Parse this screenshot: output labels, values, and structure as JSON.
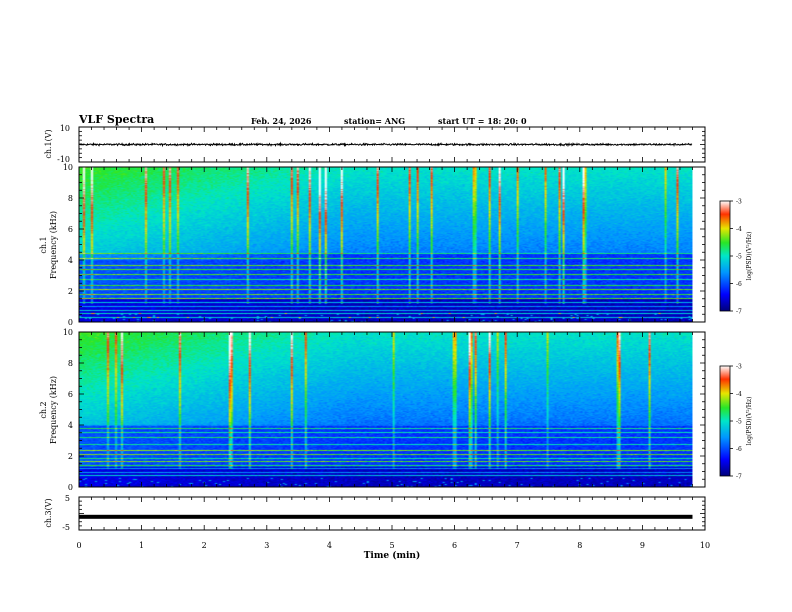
{
  "header": {
    "title": "VLF Spectra",
    "date": "Feb. 24, 2026",
    "station": "station= ANG",
    "start_ut": "start  UT  =   18: 20: 0"
  },
  "chart_data": [
    {
      "type": "line",
      "panel": "ch1-waveform",
      "title": "",
      "ylabel": "ch.1(V)",
      "xlabel": "",
      "xlim": [
        0,
        10
      ],
      "ylim": [
        -10,
        10
      ],
      "yticks": [
        10,
        -10
      ],
      "series": [
        {
          "name": "ch.1",
          "description": "noisy trace near 0 V, active 0 to 9.8 min",
          "x_range": [
            0,
            9.8
          ],
          "mean": 0,
          "amplitude": 1
        }
      ]
    },
    {
      "type": "heatmap",
      "panel": "ch1-spectrogram",
      "ylabel_line1": "ch.1",
      "ylabel_line2": "Frequency (kHz)",
      "xlim": [
        0,
        10
      ],
      "ylim": [
        0,
        10
      ],
      "yticks": [
        0,
        2,
        4,
        6,
        8,
        10
      ],
      "data_x_range": [
        0,
        9.8
      ],
      "colorbar": {
        "label": "log(PSD)(V²/Hz)",
        "min": -7,
        "max": -3,
        "ticks": [
          -3,
          -4,
          -5,
          -6,
          -7
        ]
      }
    },
    {
      "type": "heatmap",
      "panel": "ch2-spectrogram",
      "ylabel_line1": "ch.2",
      "ylabel_line2": "Frequency (kHz)",
      "xlim": [
        0,
        10
      ],
      "ylim": [
        0,
        10
      ],
      "yticks": [
        0,
        2,
        4,
        6,
        8,
        10
      ],
      "data_x_range": [
        0,
        9.8
      ],
      "colorbar": {
        "label": "log(PSD)(V²/Hz)",
        "min": -7,
        "max": -3,
        "ticks": [
          -3,
          -4,
          -5,
          -6,
          -7
        ]
      }
    },
    {
      "type": "line",
      "panel": "ch3-waveform",
      "ylabel": "ch.3(V)",
      "xlabel": "Time  (min)",
      "xlim": [
        0,
        10
      ],
      "ylim": [
        -5,
        5
      ],
      "yticks": [
        5,
        -5
      ],
      "xticks": [
        0,
        1,
        2,
        3,
        4,
        5,
        6,
        7,
        8,
        9,
        10
      ],
      "series": [
        {
          "name": "ch.3",
          "description": "flat thick trace near -1 V, 0 to 9.8 min",
          "x_range": [
            0,
            9.8
          ],
          "mean": -1
        }
      ]
    }
  ]
}
